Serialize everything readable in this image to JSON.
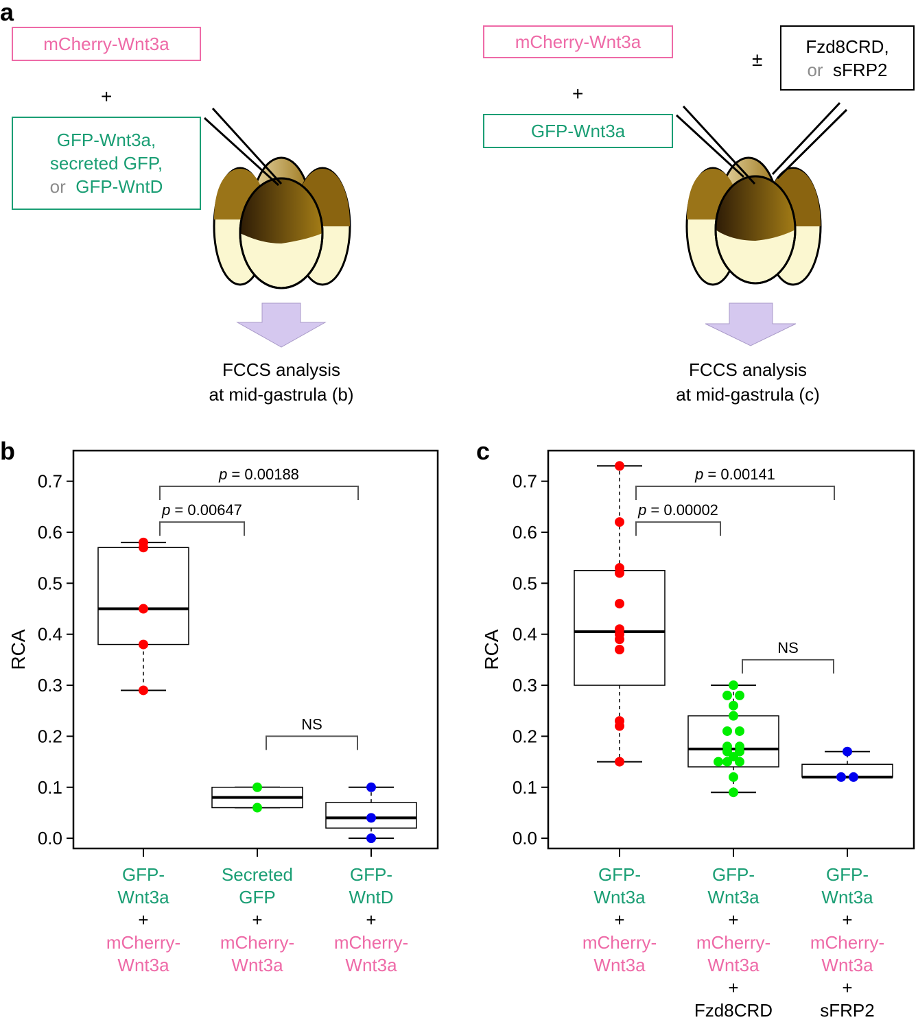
{
  "panel_a": {
    "letter": "a",
    "left": {
      "box_pink": "mCherry-Wnt3a",
      "plus": "+",
      "green_line1": "GFP-Wnt3a,",
      "green_line2": "secreted GFP,",
      "or_word": "or",
      "green_line3": "GFP-WntD",
      "analysis_line1": "FCCS analysis",
      "analysis_line2": "at mid-gastrula (b)"
    },
    "right": {
      "box_pink": "mCherry-Wnt3a",
      "plus": "+",
      "box_green": "GFP-Wnt3a",
      "pm": "±",
      "black_line1": "Fzd8CRD,",
      "or_word": "or",
      "black_line2": "sFRP2",
      "analysis_line1": "FCCS analysis",
      "analysis_line2": "at mid-gastrula (c)"
    }
  },
  "chart_data": [
    {
      "panel": "b",
      "type": "box",
      "ylabel": "RCA",
      "ylim": [
        -0.02,
        0.76
      ],
      "yticks": [
        "0.0",
        "0.1",
        "0.2",
        "0.3",
        "0.4",
        "0.5",
        "0.6",
        "0.7"
      ],
      "groups": [
        {
          "name": "GFP-Wnt3a + mCherry-Wnt3a",
          "label_green": [
            "GFP-",
            "Wnt3a"
          ],
          "label_pink": [
            "mCherry-",
            "Wnt3a"
          ],
          "extra": [],
          "color": "#ff0000",
          "box": {
            "whisker_low": 0.29,
            "q1": 0.38,
            "median": 0.45,
            "q3": 0.57,
            "whisker_high": 0.58
          },
          "points": [
            0.58,
            0.57,
            0.45,
            0.38,
            0.29
          ]
        },
        {
          "name": "Secreted GFP + mCherry-Wnt3a",
          "label_green": [
            "Secreted",
            "GFP"
          ],
          "label_pink": [
            "mCherry-",
            "Wnt3a"
          ],
          "extra": [],
          "color": "#00ee00",
          "box": {
            "whisker_low": 0.06,
            "q1": 0.06,
            "median": 0.08,
            "q3": 0.1,
            "whisker_high": 0.1
          },
          "points": [
            0.1,
            0.06
          ]
        },
        {
          "name": "GFP-WntD + mCherry-Wnt3a",
          "label_green": [
            "GFP-",
            "WntD"
          ],
          "label_pink": [
            "mCherry-",
            "Wnt3a"
          ],
          "extra": [],
          "color": "#0000ee",
          "box": {
            "whisker_low": 0.0,
            "q1": 0.02,
            "median": 0.04,
            "q3": 0.07,
            "whisker_high": 0.1
          },
          "points": [
            0.1,
            0.04,
            0.0
          ]
        }
      ],
      "comparisons": [
        {
          "from": 0,
          "to": 1,
          "italic": "p",
          "text": " = 0.00647",
          "y": 0.62
        },
        {
          "from": 0,
          "to": 2,
          "italic": "p",
          "text": " = 0.00188",
          "y": 0.69
        },
        {
          "from": 1,
          "to": 2,
          "italic": "",
          "text": "NS",
          "y": 0.2
        }
      ]
    },
    {
      "panel": "c",
      "type": "box",
      "ylabel": "RCA",
      "ylim": [
        -0.02,
        0.76
      ],
      "yticks": [
        "0.0",
        "0.1",
        "0.2",
        "0.3",
        "0.4",
        "0.5",
        "0.6",
        "0.7"
      ],
      "groups": [
        {
          "name": "GFP-Wnt3a + mCherry-Wnt3a",
          "label_green": [
            "GFP-",
            "Wnt3a"
          ],
          "label_pink": [
            "mCherry-",
            "Wnt3a"
          ],
          "extra": [],
          "color": "#ff0000",
          "box": {
            "whisker_low": 0.15,
            "q1": 0.3,
            "median": 0.405,
            "q3": 0.525,
            "whisker_high": 0.73
          },
          "points": [
            0.73,
            0.62,
            0.53,
            0.52,
            0.46,
            0.41,
            0.4,
            0.39,
            0.37,
            0.23,
            0.22,
            0.15
          ]
        },
        {
          "name": "GFP-Wnt3a + mCherry-Wnt3a + Fzd8CRD",
          "label_green": [
            "GFP-",
            "Wnt3a"
          ],
          "label_pink": [
            "mCherry-",
            "Wnt3a"
          ],
          "extra": [
            "+",
            "Fzd8CRD"
          ],
          "color": "#00ee00",
          "box": {
            "whisker_low": 0.09,
            "q1": 0.14,
            "median": 0.175,
            "q3": 0.24,
            "whisker_high": 0.3
          },
          "points": [
            0.3,
            0.28,
            0.28,
            0.26,
            0.24,
            0.21,
            0.21,
            0.18,
            0.18,
            0.17,
            0.17,
            0.16,
            0.15,
            0.15,
            0.15,
            0.12,
            0.09
          ]
        },
        {
          "name": "GFP-Wnt3a + mCherry-Wnt3a + sFRP2",
          "label_green": [
            "GFP-",
            "Wnt3a"
          ],
          "label_pink": [
            "mCherry-",
            "Wnt3a"
          ],
          "extra": [
            "+",
            "sFRP2"
          ],
          "color": "#0000ee",
          "box": {
            "whisker_low": 0.12,
            "q1": 0.12,
            "median": 0.12,
            "q3": 0.145,
            "whisker_high": 0.17
          },
          "points": [
            0.17,
            0.12,
            0.12
          ]
        }
      ],
      "comparisons": [
        {
          "from": 0,
          "to": 1,
          "italic": "p",
          "text": " = 0.00002",
          "y": 0.62
        },
        {
          "from": 0,
          "to": 2,
          "italic": "p",
          "text": " = 0.00141",
          "y": 0.69
        },
        {
          "from": 1,
          "to": 2,
          "italic": "",
          "text": "NS",
          "y": 0.35
        }
      ]
    }
  ],
  "xlabel_plus": "+",
  "colors": {
    "pink": "#ee6aa7",
    "green": "#1a9e74",
    "grey": "#8c8c8c",
    "arrow": "#d5c8ef"
  }
}
